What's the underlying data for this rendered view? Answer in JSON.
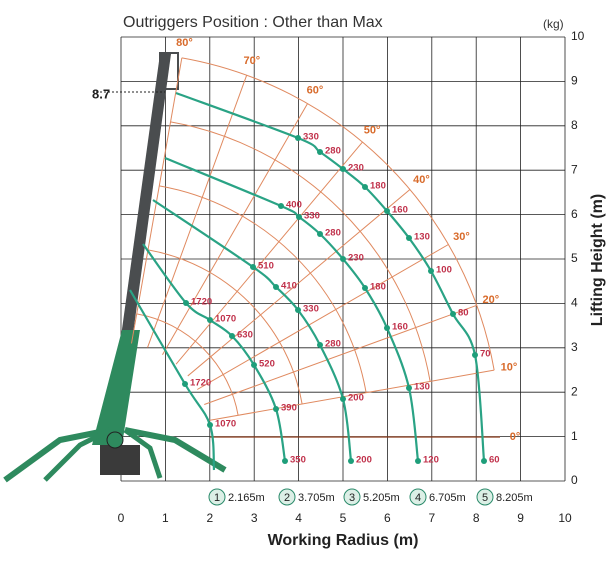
{
  "title": "Outriggers Position : Other than Max",
  "unit": "(kg)",
  "x_axis_title": "Working Radius (m)",
  "y_axis_title": "Lifting Height (m)",
  "x_ticks": [
    0,
    1,
    2,
    3,
    4,
    5,
    6,
    7,
    8,
    9,
    10
  ],
  "y_ticks": [
    0,
    1,
    2,
    3,
    4,
    5,
    6,
    7,
    8,
    9,
    10
  ],
  "height_mark": "8.7",
  "angles": [
    "80°",
    "70°",
    "60°",
    "50°",
    "40°",
    "30°",
    "20°",
    "10°",
    "0°"
  ],
  "booms": [
    {
      "number": "1",
      "length": "2.165m",
      "loads": [
        1720,
        1070
      ]
    },
    {
      "number": "2",
      "length": "3.705m",
      "loads": [
        1720,
        1070,
        630,
        520,
        390,
        350
      ]
    },
    {
      "number": "3",
      "length": "5.205m",
      "loads": [
        510,
        410,
        330,
        280,
        200,
        200
      ]
    },
    {
      "number": "4",
      "length": "6.705m",
      "loads": [
        400,
        330,
        280,
        230,
        180,
        160,
        130,
        120
      ]
    },
    {
      "number": "5",
      "length": "8.205m",
      "loads": [
        330,
        280,
        230,
        180,
        160,
        130,
        100,
        80,
        70,
        60
      ]
    }
  ]
}
